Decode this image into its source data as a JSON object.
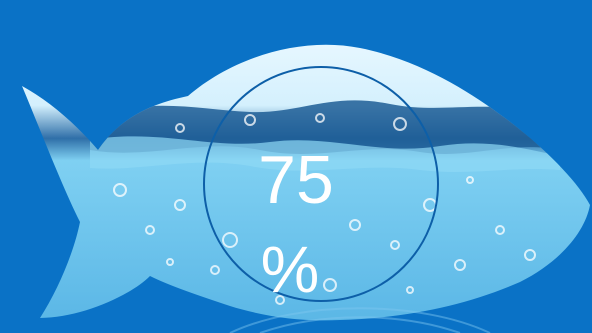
{
  "stat": {
    "value": "75",
    "unit": "%",
    "fill_fraction": 0.75
  },
  "colors": {
    "background": "#0a72c6",
    "fish_light": "#cfeefc",
    "fish_mid": "#6cc3ec",
    "fish_deep": "#2a86c9",
    "ring": "#0d5fa8",
    "text": "#ffffff"
  },
  "icons": {
    "fish": "fish-silhouette-icon",
    "bubbles": "water-bubbles"
  }
}
